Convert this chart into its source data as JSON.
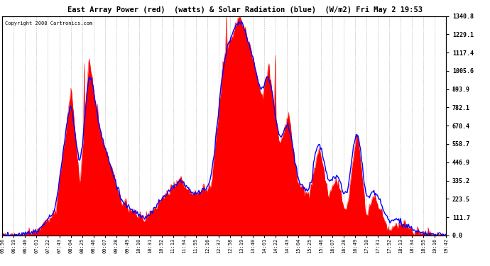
{
  "title": "East Array Power (red)  (watts) & Solar Radiation (blue)  (W/m2) Fri May 2 19:53",
  "copyright": "Copyright 2008 Cartronics.com",
  "ylabel_right_ticks": [
    0.0,
    111.7,
    223.5,
    335.2,
    446.9,
    558.7,
    670.4,
    782.1,
    893.9,
    1005.6,
    1117.4,
    1229.1,
    1340.8
  ],
  "ymax": 1340.8,
  "ymin": 0.0,
  "background_color": "#ffffff",
  "plot_bg_color": "#ffffff",
  "grid_color": "#888888",
  "tick_labels": [
    "05:56",
    "06:19",
    "06:40",
    "07:01",
    "07:22",
    "07:43",
    "08:04",
    "08:25",
    "08:46",
    "09:07",
    "09:28",
    "09:49",
    "10:10",
    "10:31",
    "10:52",
    "11:13",
    "11:34",
    "11:55",
    "12:16",
    "12:37",
    "12:58",
    "13:19",
    "13:40",
    "14:01",
    "14:22",
    "14:43",
    "15:04",
    "15:25",
    "15:46",
    "16:07",
    "16:28",
    "16:49",
    "17:10",
    "17:31",
    "17:52",
    "18:13",
    "18:34",
    "18:55",
    "19:16",
    "19:42"
  ],
  "red_color": "#ff0000",
  "blue_color": "#0000ff",
  "n_points": 500
}
